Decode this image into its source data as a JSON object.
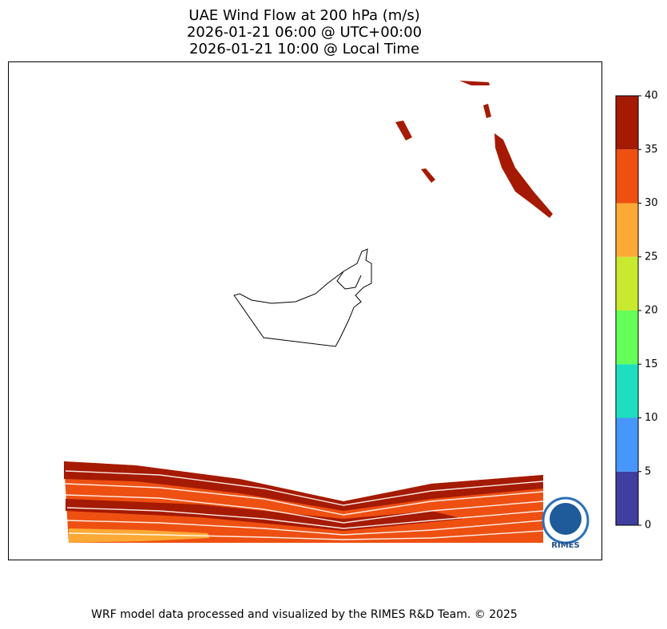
{
  "title": "UAE Wind Flow at 200 hPa (m/s)",
  "subtitle": [
    "2026-01-21 06:00 @ UTC+00:00",
    "2026-01-21 10:00 @ Local Time"
  ],
  "colorbar": {
    "ticks": [
      0,
      5,
      10,
      15,
      20,
      25,
      30,
      35,
      40
    ],
    "colors": [
      "#3f3fa0",
      "#4796fb",
      "#1ddfc0",
      "#66ff59",
      "#c9e92f",
      "#fca935",
      "#ee5012",
      "#a51a02"
    ]
  },
  "logo": "RIMES",
  "footer": "WRF model data processed and visualized by the RIMES R&D Team. © 2025"
}
